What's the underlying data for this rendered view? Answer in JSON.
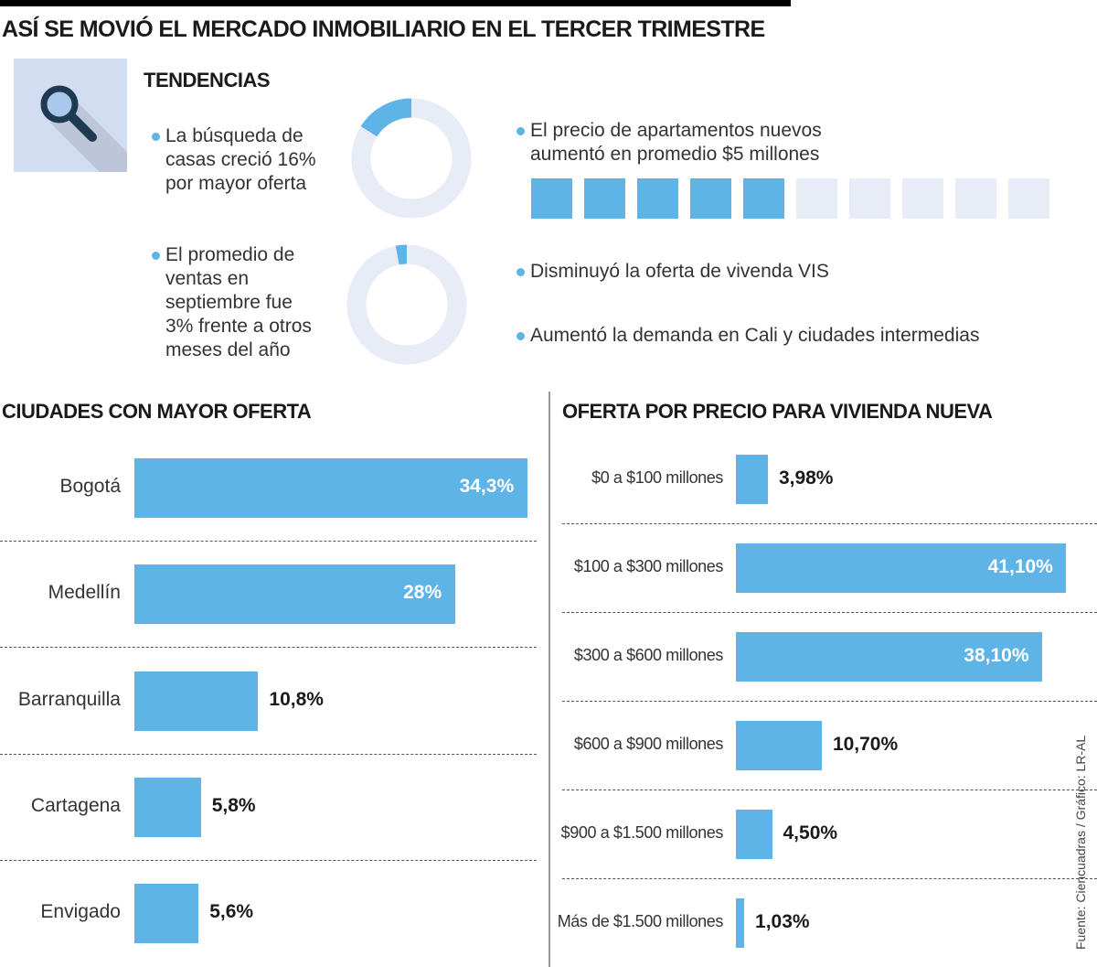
{
  "title": "ASÍ SE MOVIÓ EL MERCADO INMOBILIARIO EN  EL TERCER TRIMESTRE",
  "tendencias": {
    "heading": "TENDENCIAS",
    "icon": "magnifying-glass-icon",
    "items": [
      {
        "lines": [
          "La búsqueda de",
          "casas creció 16%",
          "por mayor oferta"
        ],
        "donut_fraction": 0.16
      },
      {
        "lines": [
          "El promedio de",
          "ventas en",
          "septiembre fue",
          "3% frente a otros",
          "meses del año"
        ],
        "donut_fraction": 0.03
      },
      {
        "lines": [
          "El precio de apartamentos nuevos",
          "aumentó en promedio $5 millones"
        ],
        "squares_total": 10,
        "squares_filled": 5
      },
      {
        "lines": [
          "Disminuyó la oferta de vivenda VIS"
        ]
      },
      {
        "lines": [
          "Aumentó la demanda en Cali y ciudades intermedias"
        ]
      }
    ]
  },
  "colors": {
    "accent": "#5eb4e6",
    "track": "#e8ecf7",
    "icon_bg": "#d2ddf1"
  },
  "chart_data": [
    {
      "type": "bar",
      "orientation": "horizontal",
      "title": "CIUDADES CON MAYOR OFERTA",
      "categories": [
        "Bogotá",
        "Medellín",
        "Barranquilla",
        "Cartagena",
        "Envigado"
      ],
      "values": [
        34.3,
        28,
        10.8,
        5.8,
        5.6
      ],
      "labels": [
        "34,3%",
        "28%",
        "10,8%",
        "5,8%",
        "5,6%"
      ]
    },
    {
      "type": "bar",
      "orientation": "horizontal",
      "title": "OFERTA POR PRECIO PARA VIVIENDA NUEVA",
      "categories": [
        "$0 a $100 millones",
        "$100 a $300 millones",
        "$300 a $600 millones",
        "$600 a $900 millones",
        "$900 a $1.500 millones",
        "Más de $1.500 millones"
      ],
      "values": [
        3.98,
        41.1,
        38.1,
        10.7,
        4.5,
        1.03
      ],
      "labels": [
        "3,98%",
        "41,10%",
        "38,10%",
        "10,70%",
        "4,50%",
        "1,03%"
      ]
    }
  ],
  "source": "Fuente: Ciencuadras / Gráfico: LR-AL"
}
